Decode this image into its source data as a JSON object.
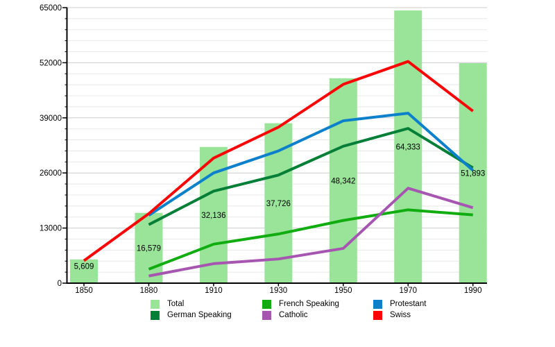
{
  "chart_data": {
    "type": "bar+line",
    "title": "",
    "xlabel": "",
    "ylabel": "",
    "categories": [
      "1850",
      "1880",
      "1910",
      "1930",
      "1950",
      "1970",
      "1990"
    ],
    "ylim": [
      0,
      65000
    ],
    "yticks": [
      0,
      13000,
      26000,
      39000,
      52000,
      65000
    ],
    "ytick_labels": [
      "0",
      "13000",
      "26000",
      "39000",
      "52000",
      "65000"
    ],
    "minor_grid_step": 2600,
    "grid": true,
    "legend_position": "bottom",
    "bar_series": {
      "name": "Total",
      "color": "#9ae49a",
      "values": [
        5609,
        16579,
        32136,
        37726,
        48342,
        64333,
        51893
      ],
      "labels": [
        "5,609",
        "16,579",
        "32,136",
        "37,726",
        "48,342",
        "64,333",
        "51,893"
      ]
    },
    "line_series": [
      {
        "name": "German Speaking",
        "color": "#047f38",
        "values": [
          null,
          13800,
          21700,
          25500,
          32300,
          36500,
          27200
        ]
      },
      {
        "name": "French Speaking",
        "color": "#10ac10",
        "values": [
          null,
          3300,
          9200,
          11600,
          14800,
          17300,
          16100
        ]
      },
      {
        "name": "Catholic",
        "color": "#a656b0",
        "values": [
          null,
          1700,
          4600,
          5700,
          8200,
          22400,
          17800
        ]
      },
      {
        "name": "Protestant",
        "color": "#0d80cc",
        "values": [
          null,
          16000,
          26000,
          31200,
          38300,
          40100,
          26600
        ]
      },
      {
        "name": "Swiss",
        "color": "#fa0505",
        "values": [
          5300,
          16400,
          29500,
          36800,
          46900,
          52300,
          40600
        ]
      }
    ],
    "legend": {
      "items": [
        {
          "label": "Total",
          "color": "#9ae49a"
        },
        {
          "label": "French Speaking",
          "color": "#10ac10"
        },
        {
          "label": "Protestant",
          "color": "#0d80cc"
        },
        {
          "label": "German Speaking",
          "color": "#047f38"
        },
        {
          "label": "Catholic",
          "color": "#a656b0"
        },
        {
          "label": "Swiss",
          "color": "#fa0505"
        }
      ]
    }
  }
}
